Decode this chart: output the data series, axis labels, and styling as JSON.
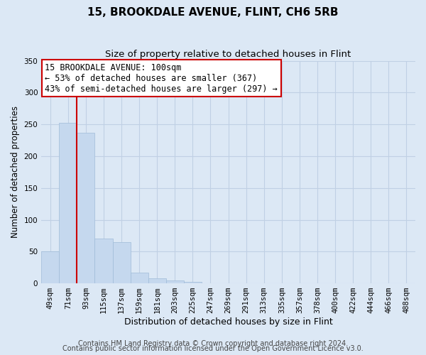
{
  "title": "15, BROOKDALE AVENUE, FLINT, CH6 5RB",
  "subtitle": "Size of property relative to detached houses in Flint",
  "xlabel": "Distribution of detached houses by size in Flint",
  "ylabel": "Number of detached properties",
  "bar_labels": [
    "49sqm",
    "71sqm",
    "93sqm",
    "115sqm",
    "137sqm",
    "159sqm",
    "181sqm",
    "203sqm",
    "225sqm",
    "247sqm",
    "269sqm",
    "291sqm",
    "313sqm",
    "335sqm",
    "357sqm",
    "378sqm",
    "400sqm",
    "422sqm",
    "444sqm",
    "466sqm",
    "488sqm"
  ],
  "bar_values": [
    50,
    252,
    237,
    70,
    65,
    17,
    8,
    5,
    2,
    0,
    0,
    0,
    0,
    0,
    0,
    0,
    0,
    0,
    0,
    0,
    0
  ],
  "bar_color": "#c5d8ee",
  "bar_edge_color": "#a0bcd8",
  "vline_color": "#cc0000",
  "vline_x_index": 1.5,
  "ylim": [
    0,
    350
  ],
  "yticks": [
    0,
    50,
    100,
    150,
    200,
    250,
    300,
    350
  ],
  "annotation_text": "15 BROOKDALE AVENUE: 100sqm\n← 53% of detached houses are smaller (367)\n43% of semi-detached houses are larger (297) →",
  "annotation_box_color": "#ffffff",
  "annotation_box_edge": "#cc0000",
  "footer_line1": "Contains HM Land Registry data © Crown copyright and database right 2024.",
  "footer_line2": "Contains public sector information licensed under the Open Government Licence v3.0.",
  "background_color": "#dce8f5",
  "plot_bg_color": "#dce8f5",
  "grid_color": "#c0d0e4",
  "title_fontsize": 11,
  "subtitle_fontsize": 9.5,
  "xlabel_fontsize": 9,
  "ylabel_fontsize": 8.5,
  "tick_fontsize": 7.5,
  "footer_fontsize": 7,
  "annotation_fontsize": 8.5
}
